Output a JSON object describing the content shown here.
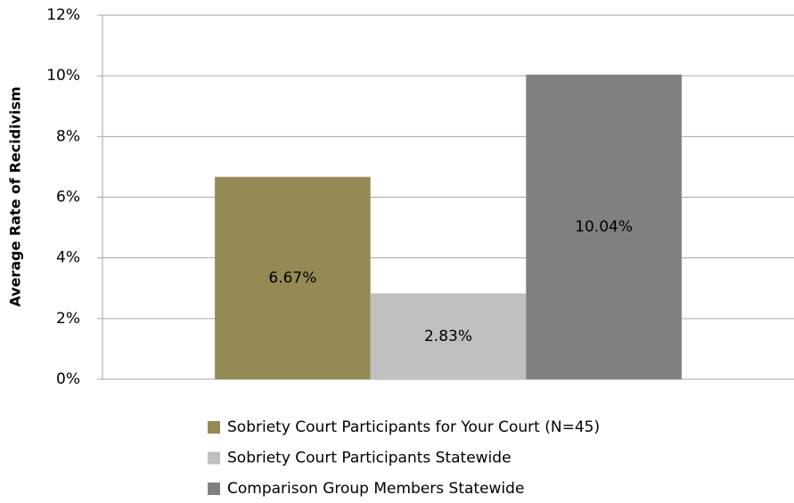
{
  "chart_data": {
    "type": "bar",
    "ylabel": "Average Rate of Recidivism",
    "categories": [
      null
    ],
    "series": [
      {
        "name": "Sobriety Court Participants for Your Court (N=45)",
        "color": "#948a54",
        "values": [
          6.67
        ],
        "value_labels": [
          "6.67%"
        ]
      },
      {
        "name": "Sobriety Court Participants Statewide",
        "color": "#c0c0c0",
        "values": [
          2.83
        ],
        "value_labels": [
          "2.83%"
        ]
      },
      {
        "name": "Comparison Group Members Statewide",
        "color": "#808080",
        "values": [
          10.04
        ],
        "value_labels": [
          "10.04%"
        ]
      }
    ],
    "ylim": [
      0,
      12
    ],
    "yticks": [
      {
        "value": 0,
        "label": "0%"
      },
      {
        "value": 2,
        "label": "2%"
      },
      {
        "value": 4,
        "label": "4%"
      },
      {
        "value": 6,
        "label": "6%"
      },
      {
        "value": 8,
        "label": "8%"
      },
      {
        "value": 10,
        "label": "10%"
      },
      {
        "value": 12,
        "label": "12%"
      }
    ],
    "grid": true,
    "legend": "bottom"
  }
}
